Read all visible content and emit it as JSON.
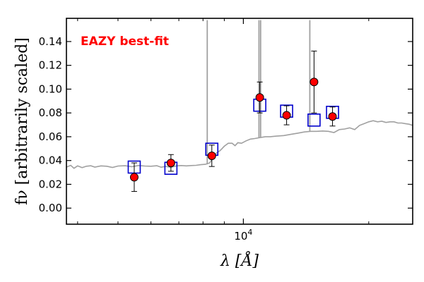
{
  "chart_data": {
    "type": "scatter",
    "title": "",
    "annotation": "EAZY best-fit",
    "annotation_color": "#ff0000",
    "xlabel_html": "λ [Å]",
    "ylabel_html": "fν [arbitrarily scaled]",
    "xscale": "log",
    "xlim": [
      3760,
      25500
    ],
    "ylim": [
      -0.0135,
      0.1595
    ],
    "grid": false,
    "y_ticks": [
      0.0,
      0.02,
      0.04,
      0.06,
      0.08,
      0.1,
      0.12,
      0.14
    ],
    "y_tick_labels": [
      "0.00",
      "0.02",
      "0.04",
      "0.06",
      "0.08",
      "0.10",
      "0.12",
      "0.14"
    ],
    "x_major_ticks": [
      10000
    ],
    "x_major_tick_labels": [
      "10^4"
    ],
    "x_minor_ticks": [
      4000,
      5000,
      6000,
      7000,
      8000,
      9000,
      20000
    ],
    "series": [
      {
        "kind": "observed",
        "marker": "circle",
        "color": "#ff0000",
        "edge_color": "#000000",
        "points": [
          {
            "x": 5470,
            "y": 0.026,
            "yerr": 0.012
          },
          {
            "x": 6700,
            "y": 0.038,
            "yerr": 0.007
          },
          {
            "x": 8400,
            "y": 0.044,
            "yerr": 0.009
          },
          {
            "x": 10950,
            "y": 0.093,
            "yerr": 0.013
          },
          {
            "x": 12700,
            "y": 0.078,
            "yerr": 0.008
          },
          {
            "x": 14780,
            "y": 0.106,
            "yerr": 0.026
          },
          {
            "x": 16370,
            "y": 0.077,
            "yerr": 0.008
          }
        ]
      },
      {
        "kind": "model",
        "marker": "square",
        "color": "#0000cc",
        "points": [
          {
            "x": 5470,
            "y": 0.0345
          },
          {
            "x": 6700,
            "y": 0.0335
          },
          {
            "x": 8400,
            "y": 0.0495
          },
          {
            "x": 10950,
            "y": 0.0865
          },
          {
            "x": 12700,
            "y": 0.0815
          },
          {
            "x": 14780,
            "y": 0.074
          },
          {
            "x": 16370,
            "y": 0.0805
          }
        ]
      },
      {
        "kind": "template",
        "color": "#a0a0a0",
        "line": [
          [
            3760,
            0.0345
          ],
          [
            3850,
            0.036
          ],
          [
            3920,
            0.0335
          ],
          [
            4000,
            0.0355
          ],
          [
            4100,
            0.034
          ],
          [
            4200,
            0.0352
          ],
          [
            4300,
            0.0356
          ],
          [
            4400,
            0.0345
          ],
          [
            4550,
            0.0355
          ],
          [
            4700,
            0.0352
          ],
          [
            4850,
            0.0342
          ],
          [
            5000,
            0.0354
          ],
          [
            5200,
            0.0356
          ],
          [
            5400,
            0.0348
          ],
          [
            5600,
            0.0358
          ],
          [
            5800,
            0.0354
          ],
          [
            6000,
            0.0352
          ],
          [
            6200,
            0.0356
          ],
          [
            6350,
            0.0344
          ],
          [
            6500,
            0.035
          ],
          [
            6700,
            0.0343
          ],
          [
            6900,
            0.0355
          ],
          [
            7100,
            0.0358
          ],
          [
            7300,
            0.0355
          ],
          [
            7500,
            0.0358
          ],
          [
            7700,
            0.036
          ],
          [
            7900,
            0.0365
          ],
          [
            8100,
            0.0368
          ],
          [
            8300,
            0.038
          ],
          [
            8450,
            0.042
          ],
          [
            8600,
            0.046
          ],
          [
            8800,
            0.0485
          ],
          [
            9000,
            0.052
          ],
          [
            9200,
            0.0545
          ],
          [
            9400,
            0.0545
          ],
          [
            9550,
            0.0525
          ],
          [
            9700,
            0.055
          ],
          [
            9900,
            0.0545
          ],
          [
            10150,
            0.0565
          ],
          [
            10400,
            0.058
          ],
          [
            10650,
            0.0585
          ],
          [
            10850,
            0.059
          ],
          [
            11050,
            0.0595
          ],
          [
            11300,
            0.06
          ],
          [
            11600,
            0.06
          ],
          [
            12000,
            0.0605
          ],
          [
            12500,
            0.061
          ],
          [
            13000,
            0.062
          ],
          [
            13500,
            0.063
          ],
          [
            14000,
            0.064
          ],
          [
            14500,
            0.0645
          ],
          [
            15000,
            0.0645
          ],
          [
            15500,
            0.0648
          ],
          [
            16000,
            0.0645
          ],
          [
            16500,
            0.0635
          ],
          [
            17000,
            0.066
          ],
          [
            17500,
            0.0665
          ],
          [
            18000,
            0.0675
          ],
          [
            18500,
            0.066
          ],
          [
            19000,
            0.0695
          ],
          [
            19500,
            0.071
          ],
          [
            20000,
            0.0725
          ],
          [
            20500,
            0.0735
          ],
          [
            21000,
            0.0725
          ],
          [
            21500,
            0.073
          ],
          [
            22000,
            0.072
          ],
          [
            22500,
            0.0725
          ],
          [
            23000,
            0.0725
          ],
          [
            23500,
            0.0715
          ],
          [
            24000,
            0.0715
          ],
          [
            24500,
            0.071
          ],
          [
            25000,
            0.0705
          ],
          [
            25500,
            0.0695
          ]
        ],
        "emission_lines": [
          {
            "x": 8190,
            "y": 0.158
          },
          {
            "x": 10900,
            "y": 0.158
          },
          {
            "x": 11000,
            "y": 0.158
          },
          {
            "x": 14440,
            "y": 0.158
          }
        ]
      }
    ]
  }
}
